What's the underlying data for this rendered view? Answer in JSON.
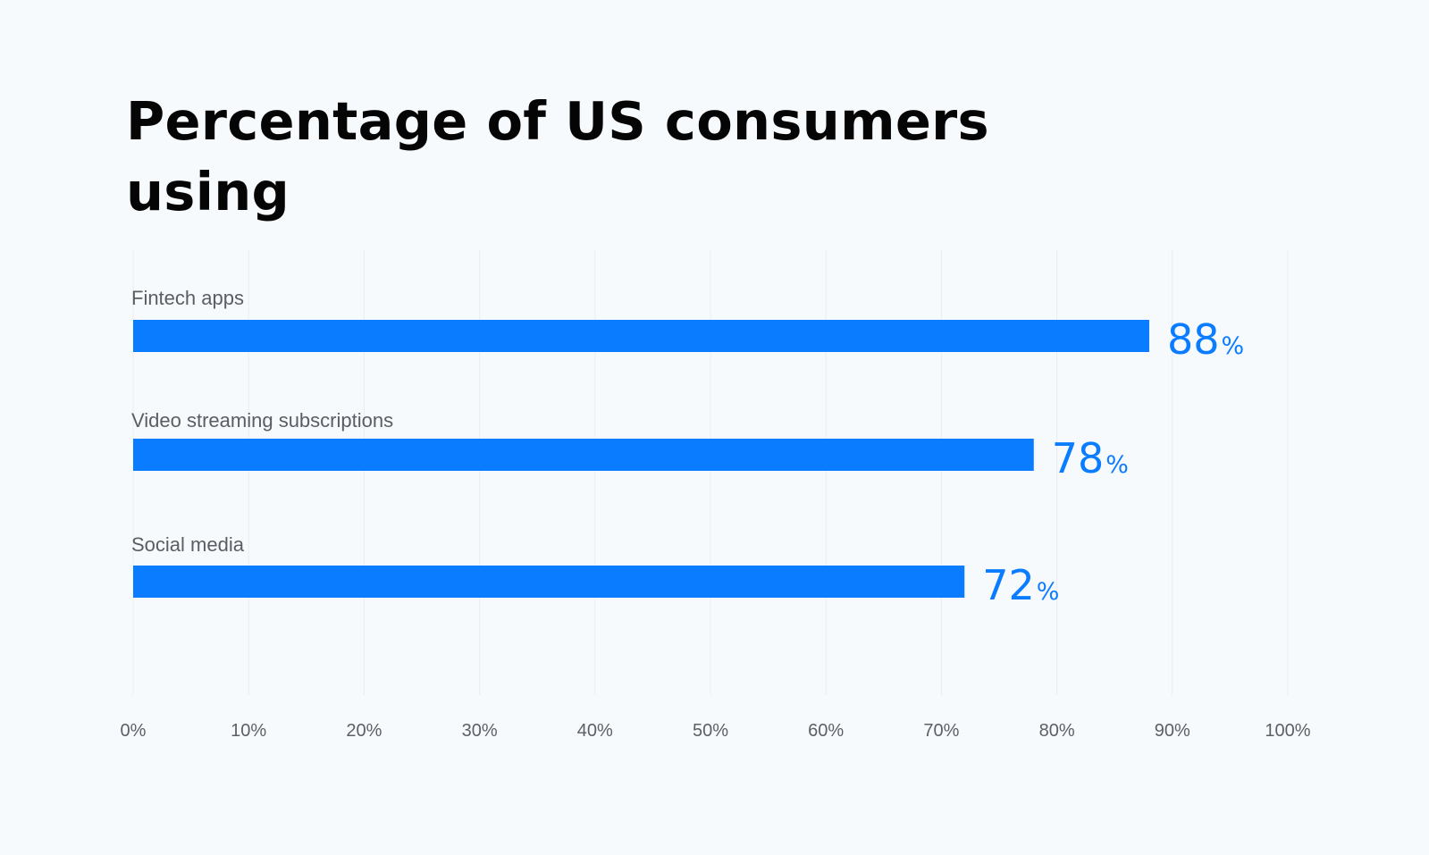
{
  "chart_data": {
    "type": "bar",
    "orientation": "horizontal",
    "title": "Percentage of US consumers using",
    "categories": [
      "Fintech apps",
      "Video streaming subscriptions",
      "Social media"
    ],
    "values": [
      88,
      78,
      72
    ],
    "value_suffix": "%",
    "xlim": [
      0,
      100
    ],
    "x_ticks": [
      0,
      10,
      20,
      30,
      40,
      50,
      60,
      70,
      80,
      90,
      100
    ],
    "x_tick_labels": [
      "0%",
      "10%",
      "20%",
      "30%",
      "40%",
      "50%",
      "60%",
      "70%",
      "80%",
      "90%",
      "100%"
    ],
    "grid": true,
    "legend": "none",
    "colors": {
      "bar": "#0a7cff",
      "value_label": "#0a7cff",
      "grid": "#e9edf1",
      "category_label": "#5a5d63",
      "tick_label": "#5c5f66"
    }
  }
}
